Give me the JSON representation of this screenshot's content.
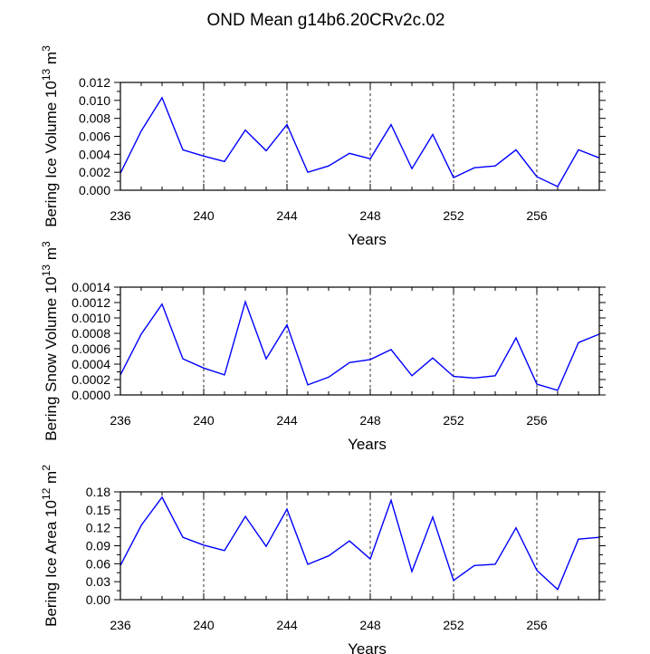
{
  "title": "OND Mean g14b6.20CRv2c.02",
  "line_color": "#0000ff",
  "chart_data": [
    {
      "type": "line",
      "ylabel": "Bering Ice Volume 10^13 m^3",
      "xlabel": "Years",
      "xlim": [
        236,
        259
      ],
      "ylim": [
        0,
        0.012
      ],
      "grid": "dashed vertical lines at 240, 244, 248, 252, 256",
      "xticks": [
        "236",
        "240",
        "244",
        "248",
        "252",
        "256"
      ],
      "yticks": [
        "0.000",
        "0.002",
        "0.004",
        "0.006",
        "0.008",
        "0.010",
        "0.012"
      ],
      "x": [
        236,
        237,
        238,
        239,
        240,
        241,
        242,
        243,
        244,
        245,
        246,
        247,
        248,
        249,
        250,
        251,
        252,
        253,
        254,
        255,
        256,
        257,
        258,
        259
      ],
      "values": [
        0.0019,
        0.0066,
        0.0103,
        0.0045,
        0.0038,
        0.0032,
        0.0067,
        0.0044,
        0.0073,
        0.002,
        0.0027,
        0.0041,
        0.0035,
        0.0073,
        0.0024,
        0.0062,
        0.0014,
        0.0025,
        0.0027,
        0.0045,
        0.0015,
        0.0004,
        0.0045,
        0.0036
      ]
    },
    {
      "type": "line",
      "ylabel": "Bering Snow Volume 10^13 m^3",
      "xlabel": "Years",
      "xlim": [
        236,
        259
      ],
      "ylim": [
        0,
        0.0014
      ],
      "grid": "dashed vertical lines at 240, 244, 248, 252, 256",
      "xticks": [
        "236",
        "240",
        "244",
        "248",
        "252",
        "256"
      ],
      "yticks": [
        "0.0000",
        "0.0002",
        "0.0004",
        "0.0006",
        "0.0008",
        "0.0010",
        "0.0012",
        "0.0014"
      ],
      "x": [
        236,
        237,
        238,
        239,
        240,
        241,
        242,
        243,
        244,
        245,
        246,
        247,
        248,
        249,
        250,
        251,
        252,
        253,
        254,
        255,
        256,
        257,
        258,
        259
      ],
      "values": [
        0.00026,
        0.00079,
        0.00118,
        0.00047,
        0.00035,
        0.00026,
        0.00121,
        0.00047,
        0.00091,
        0.00013,
        0.00023,
        0.00042,
        0.00046,
        0.00059,
        0.00025,
        0.00048,
        0.00024,
        0.00022,
        0.00025,
        0.00074,
        0.00014,
        6e-05,
        0.00068,
        0.00079
      ]
    },
    {
      "type": "line",
      "ylabel": "Bering Ice Area 10^12 m^2",
      "xlabel": "Years",
      "xlim": [
        236,
        259
      ],
      "ylim": [
        0,
        0.18
      ],
      "grid": "dashed vertical lines at 240, 244, 248, 252, 256",
      "xticks": [
        "236",
        "240",
        "244",
        "248",
        "252",
        "256"
      ],
      "yticks": [
        "0.00",
        "0.03",
        "0.06",
        "0.09",
        "0.12",
        "0.15",
        "0.18"
      ],
      "x": [
        236,
        237,
        238,
        239,
        240,
        241,
        242,
        243,
        244,
        245,
        246,
        247,
        248,
        249,
        250,
        251,
        252,
        253,
        254,
        255,
        256,
        257,
        258,
        259
      ],
      "values": [
        0.057,
        0.124,
        0.171,
        0.104,
        0.091,
        0.082,
        0.139,
        0.089,
        0.151,
        0.059,
        0.073,
        0.098,
        0.068,
        0.166,
        0.047,
        0.138,
        0.032,
        0.057,
        0.059,
        0.12,
        0.049,
        0.017,
        0.101,
        0.104
      ]
    }
  ]
}
